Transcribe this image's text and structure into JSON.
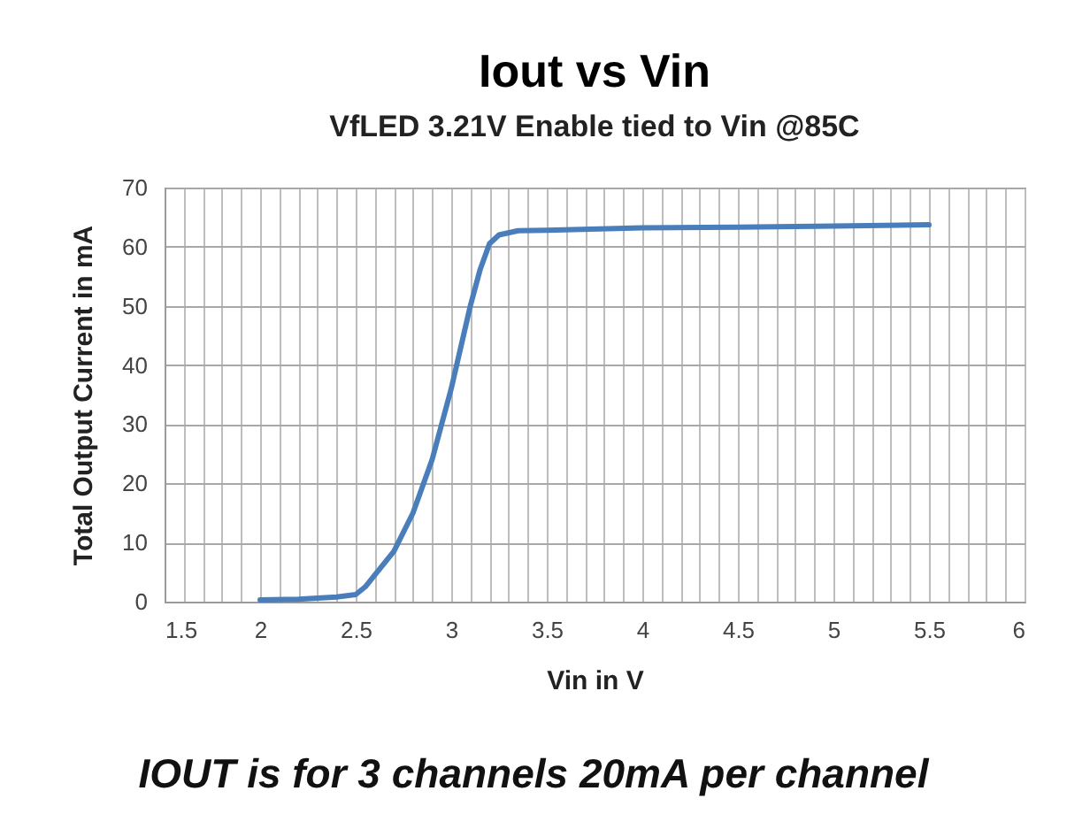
{
  "chart_data": {
    "type": "line",
    "title": "Iout vs Vin",
    "subtitle": "VfLED 3.21V Enable tied to Vin @85C",
    "xlabel": "Vin in V",
    "ylabel": "Total Output Current in mA",
    "annotations": [
      "IOUT is for 3 channels 20mA per channel"
    ],
    "x": [
      2,
      2.2,
      2.4,
      2.5,
      2.55,
      2.6,
      2.7,
      2.8,
      2.9,
      3.0,
      3.05,
      3.1,
      3.15,
      3.2,
      3.25,
      3.35,
      3.5,
      4.0,
      4.5,
      5.0,
      5.5
    ],
    "series": [
      {
        "color": "#4a7ebb",
        "values": [
          0.3,
          0.4,
          0.8,
          1.2,
          2.5,
          4.5,
          8.5,
          15,
          24,
          36,
          43,
          50,
          56,
          60.5,
          62,
          62.7,
          62.8,
          63.2,
          63.3,
          63.5,
          63.7
        ]
      }
    ],
    "xlim": [
      1.5,
      6
    ],
    "xticks": [
      1.5,
      {
        "value": 1.6,
        "label": null
      },
      {
        "value": 1.7,
        "label": null
      },
      {
        "value": 1.8,
        "label": null
      },
      {
        "value": 1.9,
        "label": null
      },
      2,
      {
        "value": 2.1,
        "label": null
      },
      {
        "value": 2.2,
        "label": null
      },
      {
        "value": 2.3,
        "label": null
      },
      {
        "value": 2.4,
        "label": null
      },
      2.5,
      {
        "value": 2.6,
        "label": null
      },
      {
        "value": 2.7,
        "label": null
      },
      {
        "value": 2.8,
        "label": null
      },
      {
        "value": 2.9,
        "label": null
      },
      3,
      {
        "value": 3.1,
        "label": null
      },
      {
        "value": 3.2,
        "label": null
      },
      {
        "value": 3.3,
        "label": null
      },
      {
        "value": 3.4,
        "label": null
      },
      3.5,
      {
        "value": 3.6,
        "label": null
      },
      {
        "value": 3.7,
        "label": null
      },
      {
        "value": 3.8,
        "label": null
      },
      {
        "value": 3.9,
        "label": null
      },
      4,
      {
        "value": 4.1,
        "label": null
      },
      {
        "value": 4.2,
        "label": null
      },
      {
        "value": 4.3,
        "label": null
      },
      {
        "value": 4.4,
        "label": null
      },
      4.5,
      {
        "value": 4.6,
        "label": null
      },
      {
        "value": 4.7,
        "label": null
      },
      {
        "value": 4.8,
        "label": null
      },
      {
        "value": 4.9,
        "label": null
      },
      5,
      {
        "value": 5.1,
        "label": null
      },
      {
        "value": 5.2,
        "label": null
      },
      {
        "value": 5.3,
        "label": null
      },
      {
        "value": 5.4,
        "label": null
      },
      5.5,
      {
        "value": 5.6,
        "label": null
      },
      {
        "value": 5.7,
        "label": null
      },
      {
        "value": 5.8,
        "label": null
      },
      {
        "value": 5.9,
        "label": null
      },
      6
    ],
    "ylim": [
      0,
      70
    ],
    "yticks": [
      0,
      10,
      20,
      30,
      40,
      50,
      60,
      70
    ],
    "grid": true,
    "marker": "none",
    "line_style": "solid"
  }
}
